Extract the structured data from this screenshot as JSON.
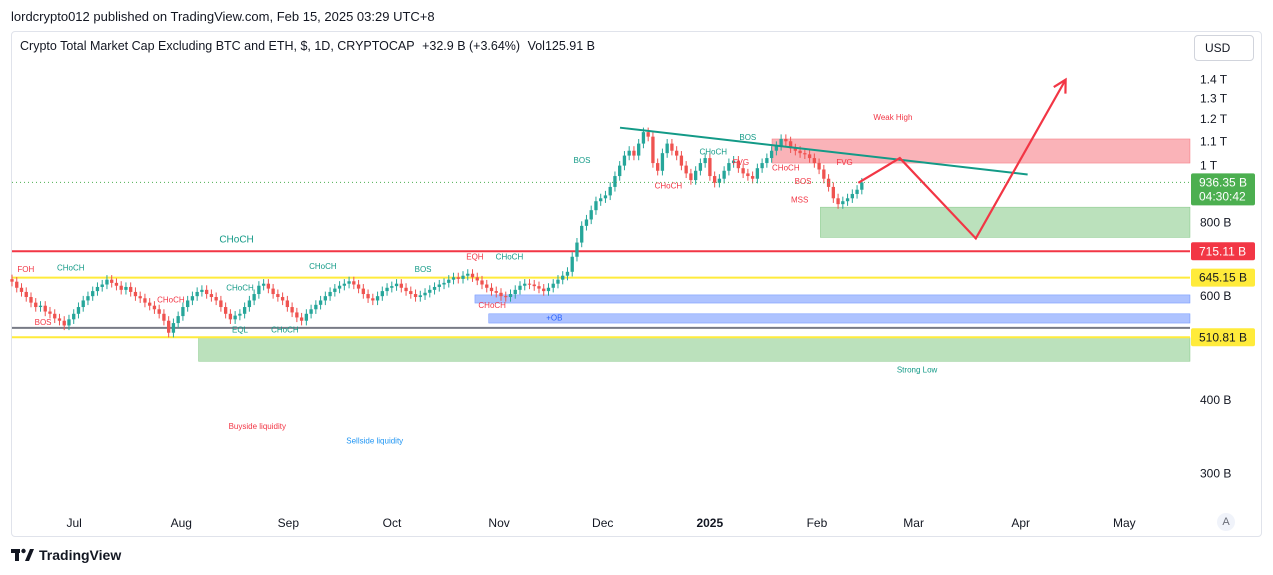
{
  "header": {
    "publish_line": "lordcrypto012 published on TradingView.com, Feb 15, 2025 03:29 UTC+8"
  },
  "legend": {
    "symbol": "Crypto Total Market Cap Excluding BTC and ETH, $, 1D, CRYPTOCAP",
    "change": "+32.9 B (+3.64%)",
    "volume": "Vol125.91 B"
  },
  "currency_button": "USD",
  "auto_button": "A",
  "footer": {
    "brand": "TradingView"
  },
  "colors": {
    "up": "#26a69a",
    "down": "#ef5350",
    "price_tag": "#4caf50",
    "red_line": "#f23645",
    "yellow_line": "#ffeb3b",
    "trendline": "#139a87"
  },
  "chart_data": {
    "type": "candlestick",
    "scale": "log",
    "y_unit": "USD",
    "y_ticks": [
      "1.4 T",
      "1.3 T",
      "1.2 T",
      "1.1 T",
      "1 T",
      "800 B",
      "600 B",
      "400 B",
      "300 B"
    ],
    "y_tick_values": [
      1400,
      1300,
      1200,
      1100,
      1000,
      800,
      600,
      400,
      300
    ],
    "x_ticks": [
      "Jul",
      "Aug",
      "Sep",
      "Oct",
      "Nov",
      "Dec",
      "2025",
      "Feb",
      "Mar",
      "Apr",
      "May"
    ],
    "x_tick_dates": [
      "2024-07-01",
      "2024-08-01",
      "2024-09-01",
      "2024-10-01",
      "2024-11-01",
      "2024-12-01",
      "2025-01-01",
      "2025-02-01",
      "2025-03-01",
      "2025-04-01",
      "2025-05-01"
    ],
    "x_range": [
      "2024-06-13",
      "2025-05-20"
    ],
    "y_range": [
      265,
      1500
    ],
    "price_labels": [
      {
        "label": "936.35 B",
        "sub": "04:30:42",
        "value": 936.35,
        "color": "#4caf50"
      },
      {
        "label": "715.11 B",
        "value": 715.11,
        "color": "#f23645"
      },
      {
        "label": "645.15 B",
        "value": 645.15,
        "color": "#ffeb3b"
      },
      {
        "label": "510.81 B",
        "value": 510.81,
        "color": "#ffeb3b"
      }
    ],
    "horizontal_lines": [
      {
        "value": 715.11,
        "color": "#f23645"
      },
      {
        "value": 645.15,
        "color": "#ffeb3b"
      },
      {
        "value": 510.81,
        "color": "#ffeb3b"
      },
      {
        "value": 530,
        "color": "#787b86"
      }
    ],
    "zones": [
      {
        "from": "2025-01-19",
        "to": "2025-05-20",
        "low": 1010,
        "high": 1110,
        "color": "#f23645"
      },
      {
        "from": "2025-02-02",
        "to": "2025-05-20",
        "low": 755,
        "high": 850,
        "color": "#4caf50"
      },
      {
        "from": "2024-08-06",
        "to": "2025-05-20",
        "low": 465,
        "high": 510,
        "color": "#4caf50"
      },
      {
        "from": "2024-10-25",
        "to": "2025-05-20",
        "low": 584,
        "high": 603,
        "color": "#2962ff"
      },
      {
        "from": "2024-10-29",
        "to": "2025-05-20",
        "low": 540,
        "high": 560,
        "color": "#2962ff"
      }
    ],
    "trendline": {
      "from": [
        "2024-12-06",
        1160
      ],
      "to": [
        "2025-04-03",
        966
      ]
    },
    "projection": [
      [
        "2025-02-13",
        935
      ],
      [
        "2025-02-25",
        1030
      ],
      [
        "2025-03-19",
        752
      ],
      [
        "2025-04-14",
        1400
      ]
    ],
    "annotations": [
      {
        "text": "Weak High",
        "date": "2025-02-23",
        "value": 1195,
        "color": "#f23645"
      },
      {
        "text": "Strong Low",
        "date": "2025-03-02",
        "value": 445,
        "color": "#139a87"
      },
      {
        "text": "CHoCH",
        "date": "2024-08-17",
        "value": 740,
        "color": "#139a87",
        "size": 10
      },
      {
        "text": "FOH",
        "date": "2024-06-17",
        "value": 660,
        "color": "#f23645"
      },
      {
        "text": "CHoCH",
        "date": "2024-06-30",
        "value": 663,
        "color": "#139a87"
      },
      {
        "text": "BOS",
        "date": "2024-06-22",
        "value": 536,
        "color": "#f23645"
      },
      {
        "text": "CHoCH",
        "date": "2024-08-18",
        "value": 613,
        "color": "#139a87"
      },
      {
        "text": "CHoCH",
        "date": "2024-07-29",
        "value": 585,
        "color": "#f23645"
      },
      {
        "text": "CHoCH",
        "date": "2024-09-11",
        "value": 667,
        "color": "#139a87"
      },
      {
        "text": "BOS",
        "date": "2024-10-10",
        "value": 660,
        "color": "#139a87"
      },
      {
        "text": "EQL",
        "date": "2024-08-18",
        "value": 520,
        "color": "#139a87"
      },
      {
        "text": "CHoCH",
        "date": "2024-08-31",
        "value": 520,
        "color": "#139a87"
      },
      {
        "text": "EQH",
        "date": "2024-10-25",
        "value": 693,
        "color": "#f23645"
      },
      {
        "text": "CHoCH",
        "date": "2024-11-04",
        "value": 693,
        "color": "#139a87"
      },
      {
        "text": "CHoCH",
        "date": "2024-10-30",
        "value": 573,
        "color": "#f23645"
      },
      {
        "text": "+OB",
        "date": "2024-11-17",
        "value": 546,
        "color": "#2962ff"
      },
      {
        "text": "BOS",
        "date": "2024-11-25",
        "value": 1010,
        "color": "#139a87"
      },
      {
        "text": "CHoCH",
        "date": "2024-12-20",
        "value": 915,
        "color": "#f23645"
      },
      {
        "text": "CHoCH",
        "date": "2025-01-02",
        "value": 1045,
        "color": "#139a87"
      },
      {
        "text": "BOS",
        "date": "2025-01-12",
        "value": 1105,
        "color": "#139a87"
      },
      {
        "text": "FVG",
        "date": "2025-01-10",
        "value": 1003,
        "color": "#f23645"
      },
      {
        "text": "CHoCH",
        "date": "2025-01-23",
        "value": 982,
        "color": "#f23645"
      },
      {
        "text": "FVG",
        "date": "2025-02-09",
        "value": 1003,
        "color": "#f23645"
      },
      {
        "text": "BOS",
        "date": "2025-01-28",
        "value": 930,
        "color": "#f23645"
      },
      {
        "text": "MSS",
        "date": "2025-01-27",
        "value": 865,
        "color": "#f23645"
      },
      {
        "text": "Buyside liquidity",
        "date": "2024-08-23",
        "value": 357,
        "color": "#f23645"
      },
      {
        "text": "Sellside liquidity",
        "date": "2024-09-26",
        "value": 337,
        "color": "#2196f3"
      }
    ],
    "candles_close": [
      635,
      620,
      610,
      598,
      585,
      575,
      578,
      565,
      560,
      550,
      545,
      535,
      548,
      560,
      575,
      590,
      600,
      612,
      622,
      628,
      640,
      632,
      625,
      615,
      622,
      610,
      600,
      595,
      585,
      578,
      570,
      560,
      545,
      520,
      540,
      555,
      575,
      590,
      600,
      610,
      615,
      605,
      598,
      590,
      575,
      560,
      548,
      556,
      560,
      575,
      590,
      605,
      625,
      630,
      618,
      605,
      598,
      590,
      575,
      563,
      552,
      545,
      560,
      570,
      580,
      590,
      600,
      610,
      618,
      625,
      630,
      636,
      628,
      618,
      605,
      595,
      590,
      600,
      612,
      620,
      624,
      630,
      620,
      612,
      605,
      598,
      602,
      608,
      615,
      622,
      628,
      632,
      640,
      646,
      642,
      650,
      655,
      646,
      638,
      628,
      620,
      612,
      608,
      600,
      598,
      605,
      615,
      625,
      630,
      628,
      624,
      618,
      612,
      620,
      630,
      640,
      650,
      660,
      700,
      740,
      790,
      810,
      840,
      870,
      880,
      890,
      920,
      960,
      1000,
      1040,
      1060,
      1040,
      1090,
      1140,
      1120,
      1010,
      980,
      1050,
      1090,
      1060,
      1040,
      1000,
      970,
      945,
      980,
      1010,
      1030,
      960,
      935,
      950,
      980,
      1010,
      1020,
      990,
      970,
      960,
      950,
      990,
      1010,
      1030,
      1060,
      1080,
      1110,
      1100,
      1070,
      1060,
      1050,
      1045,
      1030,
      1010,
      985,
      950,
      920,
      880,
      860,
      870,
      880,
      895,
      910,
      936
    ]
  }
}
